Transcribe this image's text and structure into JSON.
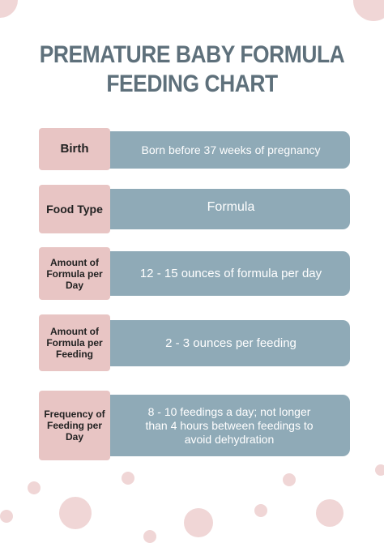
{
  "header": {
    "title_lines": [
      "PREMATURE BABY FORMULA",
      "FEEDING CHART"
    ]
  },
  "table": {
    "rows": [
      {
        "label": "Birth",
        "value": "Born before 37 weeks of pregnancy"
      },
      {
        "label": "Food Type",
        "value": "Formula"
      },
      {
        "label": "Amount of Formula per Day",
        "value": "12 - 15 ounces of formula per day"
      },
      {
        "label": "Amount of Formula per Feeding",
        "value": "2 - 3 ounces per feeding"
      },
      {
        "label": "Frequency of Feeding per Day",
        "value": "8 - 10 feedings a day; not longer than 4 hours between feedings to avoid dehydration"
      }
    ]
  }
}
